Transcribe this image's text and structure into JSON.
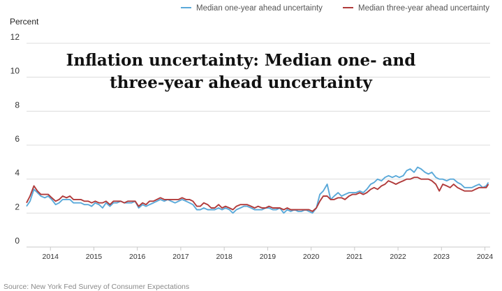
{
  "chart_data": {
    "type": "line",
    "title_lines": [
      "Inflation uncertainty: Median one- and",
      "three-year ahead uncertainty"
    ],
    "ylabel": "Percent",
    "ylim": [
      0,
      12
    ],
    "yticks": [
      0,
      2,
      4,
      6,
      8,
      10,
      12
    ],
    "xlim": [
      2013.45,
      2024.12
    ],
    "xticks": [
      "2014",
      "2015",
      "2016",
      "2017",
      "2018",
      "2019",
      "2020",
      "2021",
      "2022",
      "2023",
      "2024"
    ],
    "grid": true,
    "legend_position": "top-right",
    "source": "Source: New York Fed Survey of Consumer Expectations",
    "series": [
      {
        "name": "Median one-year ahead uncertainty",
        "color": "#5aa9d9",
        "points": [
          [
            2013.45,
            2.4
          ],
          [
            2013.53,
            2.7
          ],
          [
            2013.62,
            3.4
          ],
          [
            2013.7,
            3.2
          ],
          [
            2013.78,
            3.0
          ],
          [
            2013.87,
            2.9
          ],
          [
            2013.95,
            3.0
          ],
          [
            2014.03,
            2.8
          ],
          [
            2014.12,
            2.5
          ],
          [
            2014.2,
            2.6
          ],
          [
            2014.28,
            2.8
          ],
          [
            2014.37,
            2.8
          ],
          [
            2014.45,
            2.8
          ],
          [
            2014.53,
            2.6
          ],
          [
            2014.62,
            2.6
          ],
          [
            2014.7,
            2.6
          ],
          [
            2014.78,
            2.5
          ],
          [
            2014.87,
            2.5
          ],
          [
            2014.95,
            2.4
          ],
          [
            2015.03,
            2.6
          ],
          [
            2015.12,
            2.5
          ],
          [
            2015.2,
            2.3
          ],
          [
            2015.28,
            2.6
          ],
          [
            2015.37,
            2.4
          ],
          [
            2015.45,
            2.6
          ],
          [
            2015.53,
            2.6
          ],
          [
            2015.62,
            2.7
          ],
          [
            2015.7,
            2.6
          ],
          [
            2015.78,
            2.6
          ],
          [
            2015.87,
            2.6
          ],
          [
            2015.95,
            2.7
          ],
          [
            2016.03,
            2.3
          ],
          [
            2016.12,
            2.5
          ],
          [
            2016.2,
            2.4
          ],
          [
            2016.28,
            2.5
          ],
          [
            2016.37,
            2.6
          ],
          [
            2016.45,
            2.7
          ],
          [
            2016.53,
            2.8
          ],
          [
            2016.62,
            2.7
          ],
          [
            2016.7,
            2.8
          ],
          [
            2016.78,
            2.7
          ],
          [
            2016.87,
            2.6
          ],
          [
            2016.95,
            2.7
          ],
          [
            2017.03,
            2.8
          ],
          [
            2017.12,
            2.7
          ],
          [
            2017.2,
            2.6
          ],
          [
            2017.28,
            2.5
          ],
          [
            2017.37,
            2.2
          ],
          [
            2017.45,
            2.2
          ],
          [
            2017.53,
            2.3
          ],
          [
            2017.62,
            2.2
          ],
          [
            2017.7,
            2.2
          ],
          [
            2017.78,
            2.2
          ],
          [
            2017.87,
            2.3
          ],
          [
            2017.95,
            2.2
          ],
          [
            2018.03,
            2.3
          ],
          [
            2018.12,
            2.2
          ],
          [
            2018.2,
            2.0
          ],
          [
            2018.28,
            2.2
          ],
          [
            2018.37,
            2.3
          ],
          [
            2018.45,
            2.4
          ],
          [
            2018.53,
            2.4
          ],
          [
            2018.62,
            2.3
          ],
          [
            2018.7,
            2.2
          ],
          [
            2018.78,
            2.2
          ],
          [
            2018.87,
            2.2
          ],
          [
            2018.95,
            2.3
          ],
          [
            2019.03,
            2.3
          ],
          [
            2019.12,
            2.2
          ],
          [
            2019.2,
            2.2
          ],
          [
            2019.28,
            2.3
          ],
          [
            2019.37,
            2.0
          ],
          [
            2019.45,
            2.2
          ],
          [
            2019.53,
            2.1
          ],
          [
            2019.62,
            2.2
          ],
          [
            2019.7,
            2.1
          ],
          [
            2019.78,
            2.1
          ],
          [
            2019.87,
            2.2
          ],
          [
            2019.95,
            2.1
          ],
          [
            2020.03,
            2.0
          ],
          [
            2020.12,
            2.3
          ],
          [
            2020.2,
            3.1
          ],
          [
            2020.28,
            3.3
          ],
          [
            2020.37,
            3.7
          ],
          [
            2020.45,
            2.8
          ],
          [
            2020.53,
            3.0
          ],
          [
            2020.62,
            3.2
          ],
          [
            2020.7,
            3.0
          ],
          [
            2020.78,
            3.1
          ],
          [
            2020.87,
            3.2
          ],
          [
            2020.95,
            3.2
          ],
          [
            2021.03,
            3.2
          ],
          [
            2021.12,
            3.3
          ],
          [
            2021.2,
            3.2
          ],
          [
            2021.28,
            3.4
          ],
          [
            2021.37,
            3.7
          ],
          [
            2021.45,
            3.8
          ],
          [
            2021.53,
            4.0
          ],
          [
            2021.62,
            3.9
          ],
          [
            2021.7,
            4.1
          ],
          [
            2021.78,
            4.2
          ],
          [
            2021.87,
            4.1
          ],
          [
            2021.95,
            4.2
          ],
          [
            2022.03,
            4.1
          ],
          [
            2022.12,
            4.2
          ],
          [
            2022.2,
            4.5
          ],
          [
            2022.28,
            4.6
          ],
          [
            2022.37,
            4.4
          ],
          [
            2022.45,
            4.7
          ],
          [
            2022.53,
            4.6
          ],
          [
            2022.62,
            4.4
          ],
          [
            2022.7,
            4.3
          ],
          [
            2022.78,
            4.4
          ],
          [
            2022.87,
            4.1
          ],
          [
            2022.95,
            4.0
          ],
          [
            2023.03,
            4.0
          ],
          [
            2023.12,
            3.9
          ],
          [
            2023.2,
            4.0
          ],
          [
            2023.28,
            4.0
          ],
          [
            2023.37,
            3.8
          ],
          [
            2023.45,
            3.7
          ],
          [
            2023.53,
            3.5
          ],
          [
            2023.62,
            3.5
          ],
          [
            2023.7,
            3.5
          ],
          [
            2023.78,
            3.6
          ],
          [
            2023.87,
            3.7
          ],
          [
            2023.95,
            3.5
          ],
          [
            2024.03,
            3.6
          ],
          [
            2024.08,
            3.8
          ]
        ]
      },
      {
        "name": "Median three-year ahead uncertainty",
        "color": "#b03a3a",
        "points": [
          [
            2013.45,
            2.6
          ],
          [
            2013.53,
            3.0
          ],
          [
            2013.62,
            3.6
          ],
          [
            2013.7,
            3.3
          ],
          [
            2013.78,
            3.1
          ],
          [
            2013.87,
            3.1
          ],
          [
            2013.95,
            3.1
          ],
          [
            2014.03,
            2.9
          ],
          [
            2014.12,
            2.7
          ],
          [
            2014.2,
            2.8
          ],
          [
            2014.28,
            3.0
          ],
          [
            2014.37,
            2.9
          ],
          [
            2014.45,
            3.0
          ],
          [
            2014.53,
            2.8
          ],
          [
            2014.62,
            2.8
          ],
          [
            2014.7,
            2.8
          ],
          [
            2014.78,
            2.7
          ],
          [
            2014.87,
            2.7
          ],
          [
            2014.95,
            2.6
          ],
          [
            2015.03,
            2.7
          ],
          [
            2015.12,
            2.6
          ],
          [
            2015.2,
            2.6
          ],
          [
            2015.28,
            2.7
          ],
          [
            2015.37,
            2.5
          ],
          [
            2015.45,
            2.7
          ],
          [
            2015.53,
            2.7
          ],
          [
            2015.62,
            2.7
          ],
          [
            2015.7,
            2.6
          ],
          [
            2015.78,
            2.7
          ],
          [
            2015.87,
            2.7
          ],
          [
            2015.95,
            2.7
          ],
          [
            2016.03,
            2.4
          ],
          [
            2016.12,
            2.6
          ],
          [
            2016.2,
            2.5
          ],
          [
            2016.28,
            2.7
          ],
          [
            2016.37,
            2.7
          ],
          [
            2016.45,
            2.8
          ],
          [
            2016.53,
            2.9
          ],
          [
            2016.62,
            2.8
          ],
          [
            2016.7,
            2.8
          ],
          [
            2016.78,
            2.8
          ],
          [
            2016.87,
            2.8
          ],
          [
            2016.95,
            2.8
          ],
          [
            2017.03,
            2.9
          ],
          [
            2017.12,
            2.8
          ],
          [
            2017.2,
            2.8
          ],
          [
            2017.28,
            2.7
          ],
          [
            2017.37,
            2.4
          ],
          [
            2017.45,
            2.4
          ],
          [
            2017.53,
            2.6
          ],
          [
            2017.62,
            2.5
          ],
          [
            2017.7,
            2.3
          ],
          [
            2017.78,
            2.3
          ],
          [
            2017.87,
            2.5
          ],
          [
            2017.95,
            2.3
          ],
          [
            2018.03,
            2.4
          ],
          [
            2018.12,
            2.3
          ],
          [
            2018.2,
            2.2
          ],
          [
            2018.28,
            2.4
          ],
          [
            2018.37,
            2.5
          ],
          [
            2018.45,
            2.5
          ],
          [
            2018.53,
            2.5
          ],
          [
            2018.62,
            2.4
          ],
          [
            2018.7,
            2.3
          ],
          [
            2018.78,
            2.4
          ],
          [
            2018.87,
            2.3
          ],
          [
            2018.95,
            2.3
          ],
          [
            2019.03,
            2.4
          ],
          [
            2019.12,
            2.3
          ],
          [
            2019.2,
            2.3
          ],
          [
            2019.28,
            2.3
          ],
          [
            2019.37,
            2.2
          ],
          [
            2019.45,
            2.3
          ],
          [
            2019.53,
            2.2
          ],
          [
            2019.62,
            2.2
          ],
          [
            2019.7,
            2.2
          ],
          [
            2019.78,
            2.2
          ],
          [
            2019.87,
            2.2
          ],
          [
            2019.95,
            2.2
          ],
          [
            2020.03,
            2.1
          ],
          [
            2020.12,
            2.3
          ],
          [
            2020.2,
            2.7
          ],
          [
            2020.28,
            3.0
          ],
          [
            2020.37,
            3.0
          ],
          [
            2020.45,
            2.8
          ],
          [
            2020.53,
            2.8
          ],
          [
            2020.62,
            2.9
          ],
          [
            2020.7,
            2.9
          ],
          [
            2020.78,
            2.8
          ],
          [
            2020.87,
            3.0
          ],
          [
            2020.95,
            3.1
          ],
          [
            2021.03,
            3.1
          ],
          [
            2021.12,
            3.2
          ],
          [
            2021.2,
            3.1
          ],
          [
            2021.28,
            3.2
          ],
          [
            2021.37,
            3.4
          ],
          [
            2021.45,
            3.5
          ],
          [
            2021.53,
            3.4
          ],
          [
            2021.62,
            3.6
          ],
          [
            2021.7,
            3.7
          ],
          [
            2021.78,
            3.9
          ],
          [
            2021.87,
            3.8
          ],
          [
            2021.95,
            3.7
          ],
          [
            2022.03,
            3.8
          ],
          [
            2022.12,
            3.9
          ],
          [
            2022.2,
            4.0
          ],
          [
            2022.28,
            4.0
          ],
          [
            2022.37,
            4.1
          ],
          [
            2022.45,
            4.1
          ],
          [
            2022.53,
            4.0
          ],
          [
            2022.62,
            4.0
          ],
          [
            2022.7,
            4.0
          ],
          [
            2022.78,
            3.9
          ],
          [
            2022.87,
            3.7
          ],
          [
            2022.95,
            3.3
          ],
          [
            2023.03,
            3.7
          ],
          [
            2023.12,
            3.6
          ],
          [
            2023.2,
            3.5
          ],
          [
            2023.28,
            3.7
          ],
          [
            2023.37,
            3.5
          ],
          [
            2023.45,
            3.4
          ],
          [
            2023.53,
            3.3
          ],
          [
            2023.62,
            3.3
          ],
          [
            2023.7,
            3.3
          ],
          [
            2023.78,
            3.4
          ],
          [
            2023.87,
            3.5
          ],
          [
            2023.95,
            3.5
          ],
          [
            2024.03,
            3.5
          ],
          [
            2024.08,
            3.7
          ]
        ]
      }
    ]
  }
}
